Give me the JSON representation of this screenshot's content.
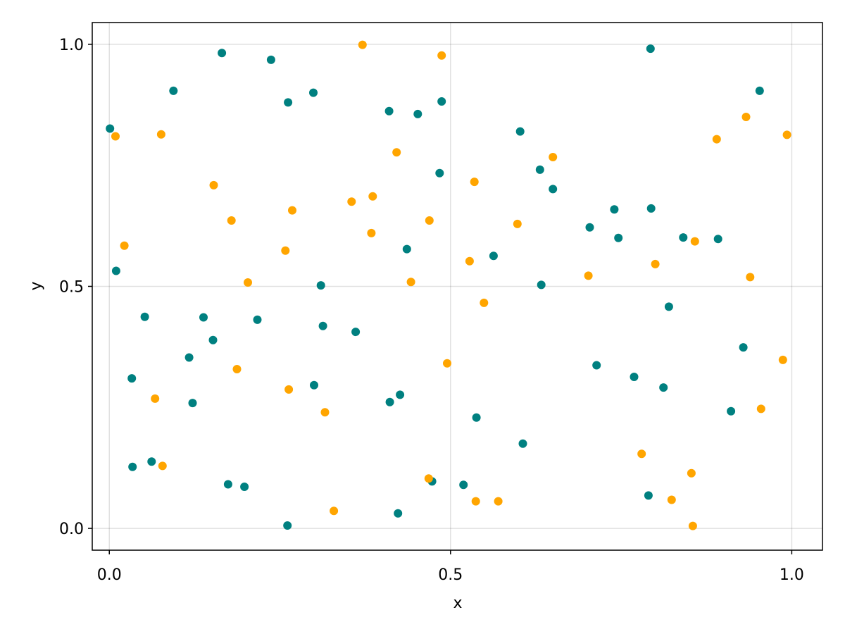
{
  "chart_data": {
    "type": "scatter",
    "title": "",
    "xlabel": "x",
    "ylabel": "y",
    "xlim": [
      -0.025,
      1.045
    ],
    "ylim": [
      -0.045,
      1.045
    ],
    "xticks": [
      0.0,
      0.5,
      1.0
    ],
    "xtick_labels": [
      "0.0",
      "0.5",
      "1.0"
    ],
    "yticks": [
      0.0,
      0.5,
      1.0
    ],
    "ytick_labels": [
      "0.0",
      "0.5",
      "1.0"
    ],
    "grid": true,
    "series": [
      {
        "color": "#008080",
        "points": [
          [
            0.001,
            0.826
          ],
          [
            0.01,
            0.532
          ],
          [
            0.033,
            0.31
          ],
          [
            0.034,
            0.127
          ],
          [
            0.052,
            0.437
          ],
          [
            0.062,
            0.138
          ],
          [
            0.094,
            0.904
          ],
          [
            0.117,
            0.353
          ],
          [
            0.122,
            0.259
          ],
          [
            0.138,
            0.436
          ],
          [
            0.152,
            0.389
          ],
          [
            0.165,
            0.982
          ],
          [
            0.174,
            0.091
          ],
          [
            0.198,
            0.086
          ],
          [
            0.217,
            0.431
          ],
          [
            0.237,
            0.968
          ],
          [
            0.261,
            0.006
          ],
          [
            0.262,
            0.88
          ],
          [
            0.3,
            0.296
          ],
          [
            0.299,
            0.9
          ],
          [
            0.31,
            0.502
          ],
          [
            0.313,
            0.418
          ],
          [
            0.361,
            0.406
          ],
          [
            0.41,
            0.862
          ],
          [
            0.411,
            0.261
          ],
          [
            0.423,
            0.031
          ],
          [
            0.426,
            0.276
          ],
          [
            0.436,
            0.577
          ],
          [
            0.452,
            0.856
          ],
          [
            0.473,
            0.097
          ],
          [
            0.484,
            0.734
          ],
          [
            0.487,
            0.882
          ],
          [
            0.519,
            0.09
          ],
          [
            0.538,
            0.229
          ],
          [
            0.563,
            0.563
          ],
          [
            0.602,
            0.82
          ],
          [
            0.606,
            0.175
          ],
          [
            0.631,
            0.741
          ],
          [
            0.633,
            0.503
          ],
          [
            0.65,
            0.701
          ],
          [
            0.704,
            0.622
          ],
          [
            0.714,
            0.337
          ],
          [
            0.74,
            0.659
          ],
          [
            0.746,
            0.6
          ],
          [
            0.769,
            0.313
          ],
          [
            0.79,
            0.068
          ],
          [
            0.793,
            0.991
          ],
          [
            0.794,
            0.661
          ],
          [
            0.812,
            0.291
          ],
          [
            0.82,
            0.458
          ],
          [
            0.841,
            0.601
          ],
          [
            0.892,
            0.598
          ],
          [
            0.911,
            0.242
          ],
          [
            0.929,
            0.374
          ],
          [
            0.953,
            0.904
          ]
        ]
      },
      {
        "color": "#ffa500",
        "points": [
          [
            0.009,
            0.81
          ],
          [
            0.022,
            0.584
          ],
          [
            0.067,
            0.268
          ],
          [
            0.076,
            0.814
          ],
          [
            0.078,
            0.129
          ],
          [
            0.153,
            0.709
          ],
          [
            0.179,
            0.636
          ],
          [
            0.187,
            0.329
          ],
          [
            0.203,
            0.508
          ],
          [
            0.258,
            0.574
          ],
          [
            0.263,
            0.287
          ],
          [
            0.268,
            0.657
          ],
          [
            0.316,
            0.24
          ],
          [
            0.329,
            0.036
          ],
          [
            0.355,
            0.675
          ],
          [
            0.371,
            0.999
          ],
          [
            0.384,
            0.61
          ],
          [
            0.386,
            0.686
          ],
          [
            0.421,
            0.777
          ],
          [
            0.442,
            0.509
          ],
          [
            0.468,
            0.103
          ],
          [
            0.469,
            0.636
          ],
          [
            0.487,
            0.977
          ],
          [
            0.495,
            0.341
          ],
          [
            0.528,
            0.552
          ],
          [
            0.535,
            0.716
          ],
          [
            0.537,
            0.056
          ],
          [
            0.549,
            0.466
          ],
          [
            0.57,
            0.056
          ],
          [
            0.598,
            0.629
          ],
          [
            0.65,
            0.767
          ],
          [
            0.702,
            0.522
          ],
          [
            0.78,
            0.154
          ],
          [
            0.8,
            0.546
          ],
          [
            0.824,
            0.059
          ],
          [
            0.853,
            0.114
          ],
          [
            0.855,
            0.005
          ],
          [
            0.858,
            0.593
          ],
          [
            0.89,
            0.804
          ],
          [
            0.933,
            0.85
          ],
          [
            0.939,
            0.519
          ],
          [
            0.955,
            0.247
          ],
          [
            0.987,
            0.348
          ],
          [
            0.993,
            0.813
          ]
        ]
      }
    ]
  }
}
